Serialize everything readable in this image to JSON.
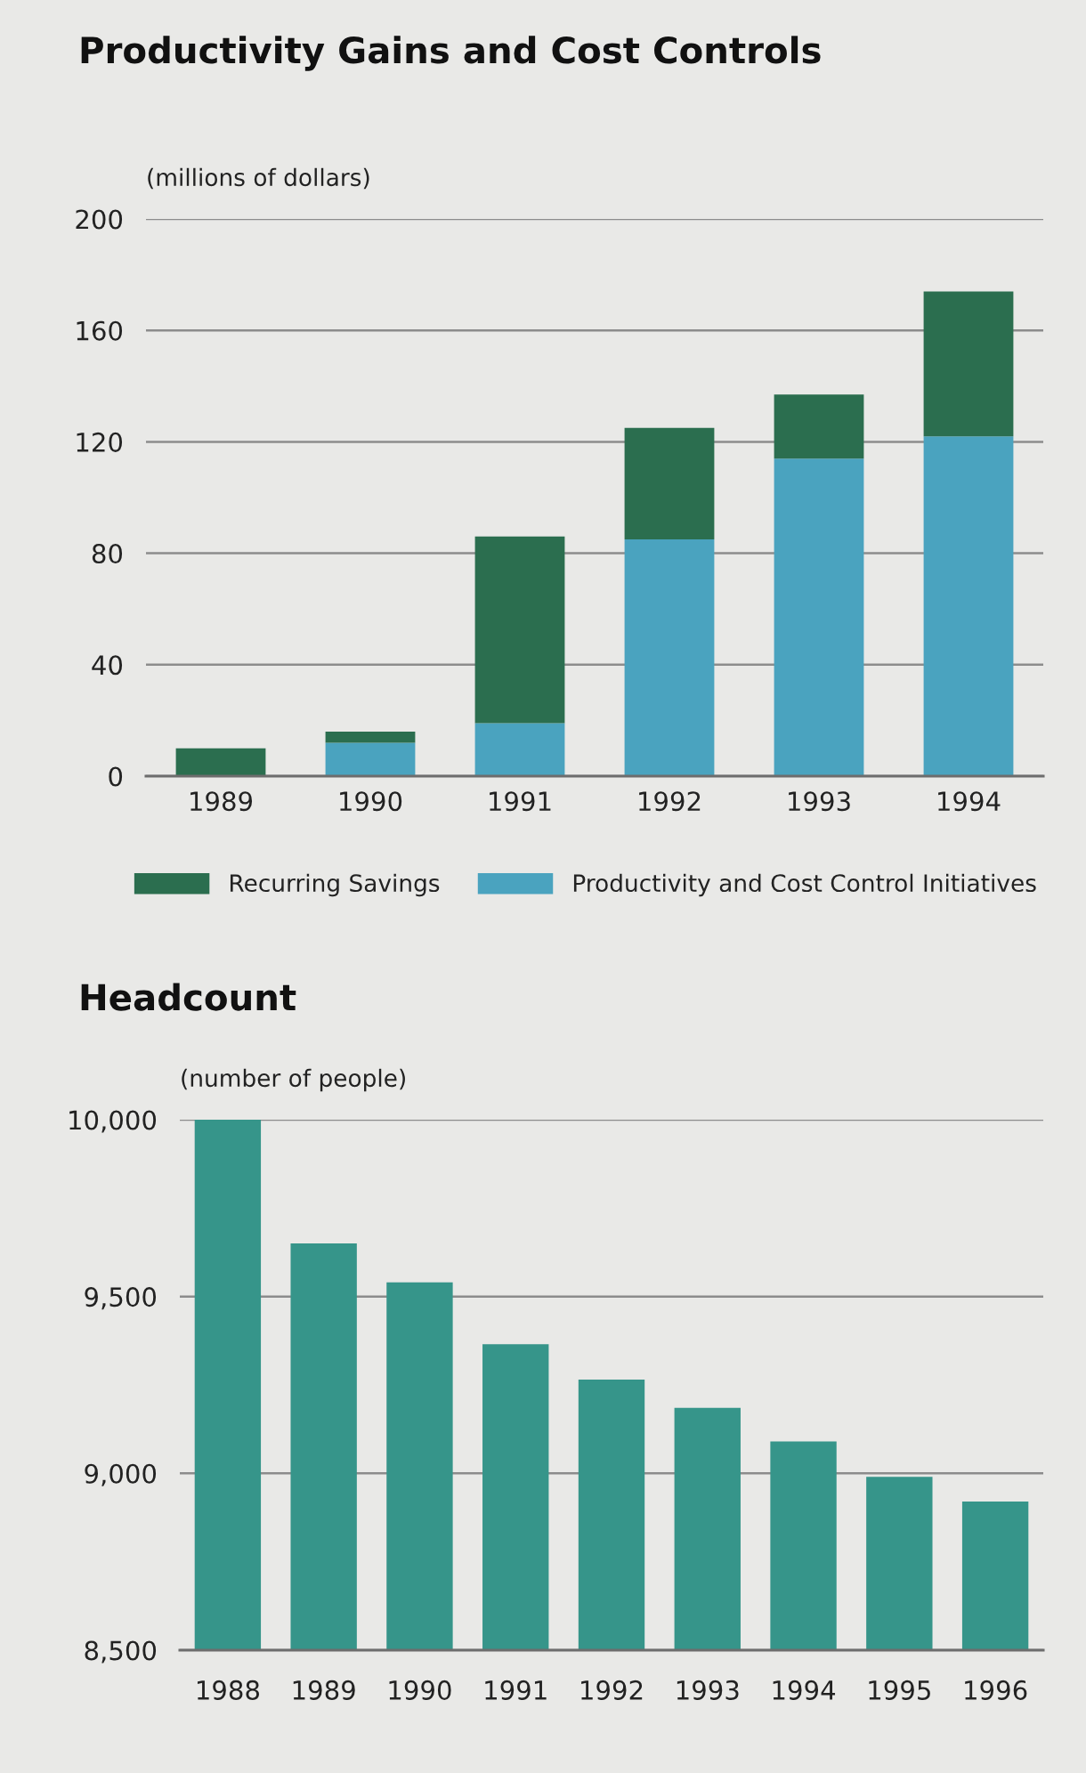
{
  "chart_data": [
    {
      "type": "bar",
      "title": "Productivity Gains and Cost Controls",
      "ylabel": "(millions of dollars)",
      "categories": [
        "1989",
        "1990",
        "1991",
        "1992",
        "1993",
        "1994"
      ],
      "stacked": true,
      "series": [
        {
          "name": "Productivity and Cost Control Initiatives",
          "color": "#4aa3bf",
          "values": [
            null,
            12,
            19,
            85,
            114,
            122
          ]
        },
        {
          "name": "Recurring Savings",
          "color": "#2b6e4f",
          "values": [
            10,
            4,
            67,
            40,
            23,
            52
          ]
        }
      ],
      "ylim": [
        0,
        200
      ],
      "yticks": [
        0,
        40,
        80,
        120,
        160,
        200
      ],
      "grid": "y",
      "legend": "bottom"
    },
    {
      "type": "bar",
      "title": "Headcount",
      "ylabel": "(number of people)",
      "categories": [
        "1988",
        "1989",
        "1990",
        "1991",
        "1992",
        "1993",
        "1994",
        "1995",
        "1996"
      ],
      "color": "#36958a",
      "values": [
        10000,
        9650,
        9540,
        9365,
        9265,
        9185,
        9090,
        8990,
        8920
      ],
      "ylim": [
        8500,
        10000
      ],
      "yticks": [
        {
          "value": 8500,
          "label": "8,500"
        },
        {
          "value": 9000,
          "label": "9,000"
        },
        {
          "value": 9500,
          "label": "9,500"
        },
        {
          "value": 10000,
          "label": "10,000"
        }
      ],
      "grid": "y"
    }
  ]
}
